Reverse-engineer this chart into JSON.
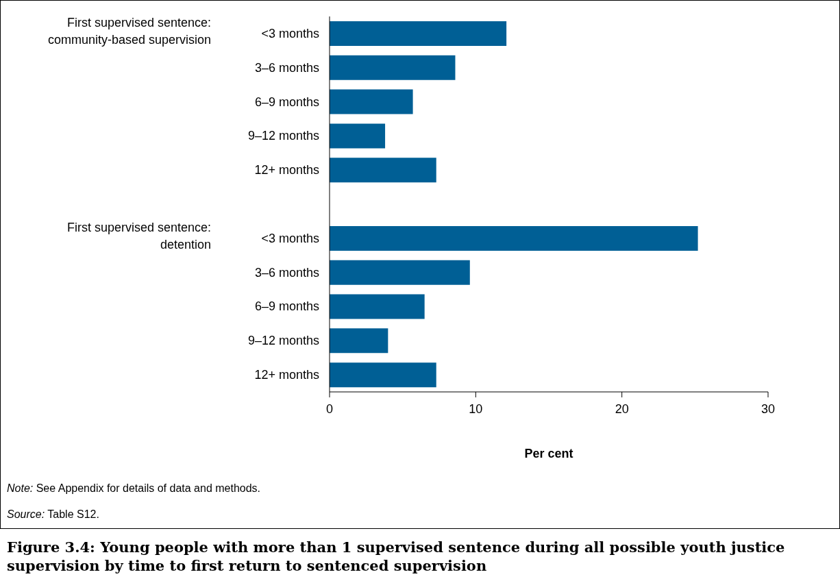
{
  "chart_data": {
    "type": "bar",
    "orientation": "horizontal",
    "title": "Figure 3.4: Young people with more than 1 supervised sentence during all possible youth justice supervision by time to first return to sentenced supervision",
    "xlabel": "Per cent",
    "categories": [
      "<3 months",
      "3–6 months",
      "6–9 months",
      "9–12 months",
      "12+ months",
      null,
      "<3 months",
      "3–6 months",
      "6–9 months",
      "9–12 months",
      "12+ months"
    ],
    "values": [
      12.1,
      8.6,
      5.7,
      3.8,
      7.3,
      null,
      25.2,
      9.6,
      6.5,
      4.0,
      7.3
    ],
    "color": "#005f95",
    "xlim": [
      0,
      30
    ],
    "xticks": [
      0,
      10,
      20,
      30
    ],
    "grid": false,
    "legend": false,
    "annotations": [
      "First supervised sentence: community-based supervision",
      "First supervised sentence: detention",
      "Note: See Appendix for details of data and methods.",
      "Source: Table S12."
    ]
  }
}
